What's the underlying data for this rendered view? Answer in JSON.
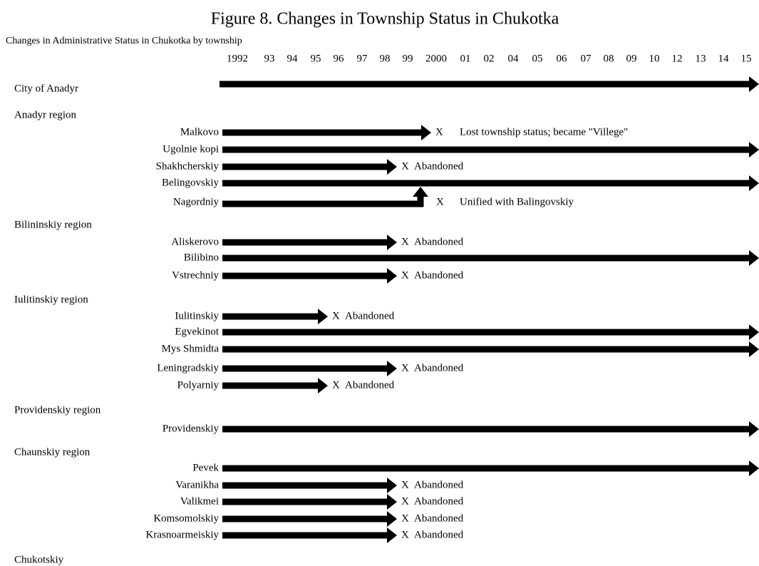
{
  "title": "Figure 8. Changes in Township Status in Chukotka",
  "subtitle": "Changes in Administrative Status in Chukotka by township",
  "years": [
    "1992",
    "93",
    "94",
    "95",
    "96",
    "97",
    "98",
    "99",
    "2000",
    "01",
    "02",
    "04",
    "05",
    "06",
    "07",
    "08",
    "09",
    "10",
    "12",
    "13",
    "14",
    "15"
  ],
  "groups": [
    {
      "label": "City of Anadyr"
    },
    {
      "label": "Anadyr region",
      "townships": [
        {
          "name": "Malkovo",
          "marker": "X",
          "note": "Lost township status; became \"Villege\""
        },
        {
          "name": "Ugolnie kopi"
        },
        {
          "name": "Shakhcherskiy",
          "marker": "X",
          "note": "Abandoned"
        },
        {
          "name": "Belingovskiy"
        },
        {
          "name": "Nagordniy",
          "marker": "X",
          "note": "Unified with Balingovskiy"
        }
      ]
    },
    {
      "label": "Bilininskiy region",
      "townships": [
        {
          "name": "Aliskerovo",
          "marker": "X",
          "note": "Abandoned"
        },
        {
          "name": "Bilibino"
        },
        {
          "name": "Vstrechniy",
          "marker": "X",
          "note": "Abandoned"
        }
      ]
    },
    {
      "label": "Iulitinskiy region",
      "townships": [
        {
          "name": "Iulitinskiy",
          "marker": "X",
          "note": "Abandoned"
        },
        {
          "name": "Egvekinot"
        },
        {
          "name": "Mys Shmidta"
        },
        {
          "name": "Leningradskiy",
          "marker": "X",
          "note": "Abandoned"
        },
        {
          "name": "Polyarniy",
          "marker": "X",
          "note": "Abandoned"
        }
      ]
    },
    {
      "label": "Providenskiy region",
      "townships": [
        {
          "name": "Providenskiy"
        }
      ]
    },
    {
      "label": "Chaunskiy region",
      "townships": [
        {
          "name": "Pevek"
        },
        {
          "name": "Varanikha",
          "marker": "X",
          "note": "Abandoned"
        },
        {
          "name": "Valikmei",
          "marker": "X",
          "note": "Abandoned"
        },
        {
          "name": "Komsomolskiy",
          "marker": "X",
          "note": "Abandoned"
        },
        {
          "name": "Krasnoarmeiskiy",
          "marker": "X",
          "note": "Abandoned"
        }
      ]
    },
    {
      "label": "Chukotskiy"
    }
  ]
}
